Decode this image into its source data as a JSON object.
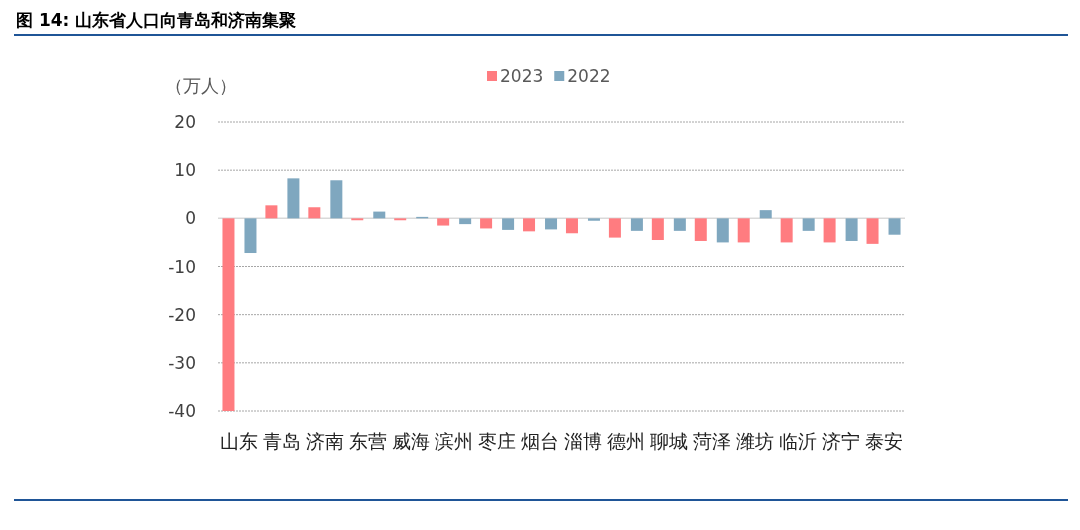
{
  "chart_data": {
    "type": "bar",
    "title": "图 14: 山东省人口向青岛和济南集聚",
    "ylabel": "（万人）",
    "categories": [
      "山东",
      "青岛",
      "济南",
      "东营",
      "威海",
      "滨州",
      "枣庄",
      "烟台",
      "淄博",
      "德州",
      "聊城",
      "菏泽",
      "潍坊",
      "临沂",
      "济宁",
      "泰安"
    ],
    "series": [
      {
        "name": "2023",
        "color": "#ff7c80",
        "values": [
          -40,
          2.7,
          2.3,
          -0.4,
          -0.4,
          -1.5,
          -2.1,
          -2.7,
          -3.1,
          -4.0,
          -4.5,
          -4.7,
          -5.0,
          -5.0,
          -5.0,
          -5.3
        ]
      },
      {
        "name": "2022",
        "color": "#7fa7bf",
        "values": [
          -7.2,
          8.3,
          7.9,
          1.4,
          0.3,
          -1.2,
          -2.4,
          -2.3,
          -0.5,
          -2.6,
          -2.6,
          -5.0,
          1.7,
          -2.6,
          -4.7,
          -3.4
        ]
      }
    ],
    "ylim": [
      -40,
      20
    ],
    "yticks": [
      -40,
      -30,
      -20,
      -10,
      0,
      10,
      20
    ],
    "grid": "y",
    "legend": "top"
  }
}
